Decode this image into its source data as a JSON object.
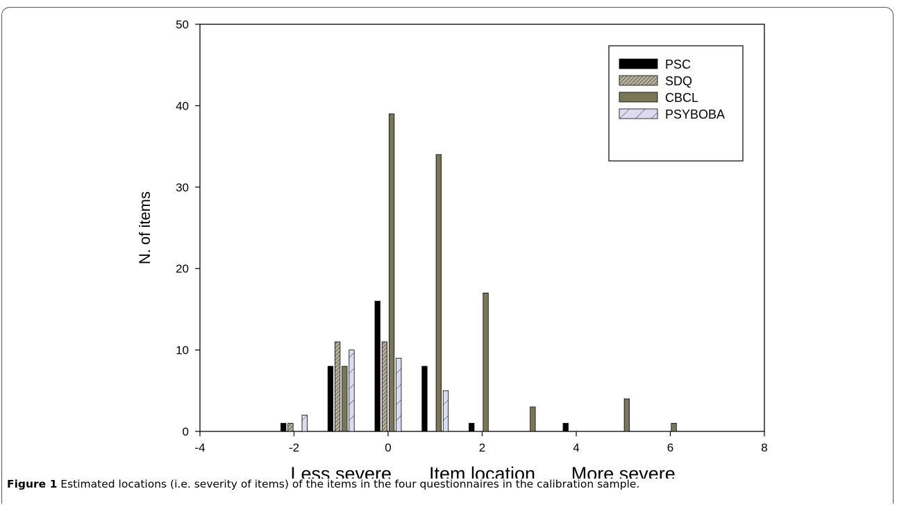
{
  "chart_data": {
    "type": "bar",
    "xlabel": "Item location",
    "ylabel": "N. of items",
    "x_annotations": {
      "left": "Less severe",
      "center": "Item location",
      "right": "More severe"
    },
    "xlim": [
      -4,
      8
    ],
    "ylim": [
      0,
      50
    ],
    "xticks": [
      -4,
      -2,
      0,
      2,
      4,
      6,
      8
    ],
    "yticks": [
      0,
      10,
      20,
      30,
      40,
      50
    ],
    "bins": [
      -2,
      -1,
      0,
      1,
      2,
      3,
      4,
      5,
      6
    ],
    "series": [
      {
        "name": "PSC",
        "color": "#000000",
        "pattern": "solid",
        "values": [
          1,
          8,
          16,
          8,
          1,
          0,
          1,
          0,
          0
        ]
      },
      {
        "name": "SDQ",
        "color": "#b5b09a",
        "pattern": "dense-diagonal",
        "values": [
          1,
          11,
          11,
          0,
          0,
          0,
          0,
          0,
          0
        ]
      },
      {
        "name": "CBCL",
        "color": "#7a7658",
        "pattern": "solid",
        "values": [
          0,
          8,
          39,
          34,
          17,
          3,
          0,
          4,
          1
        ]
      },
      {
        "name": "PSYBOBA",
        "color": "#dcdcf0",
        "pattern": "sparse-diagonal",
        "values": [
          2,
          10,
          9,
          5,
          0,
          0,
          0,
          0,
          0
        ]
      }
    ],
    "legend_position": "top-right",
    "grid": false
  },
  "caption": {
    "label": "Figure 1",
    "text": " Estimated locations (i.e. severity of items) of the items in the four questionnaires in the calibration sample."
  }
}
